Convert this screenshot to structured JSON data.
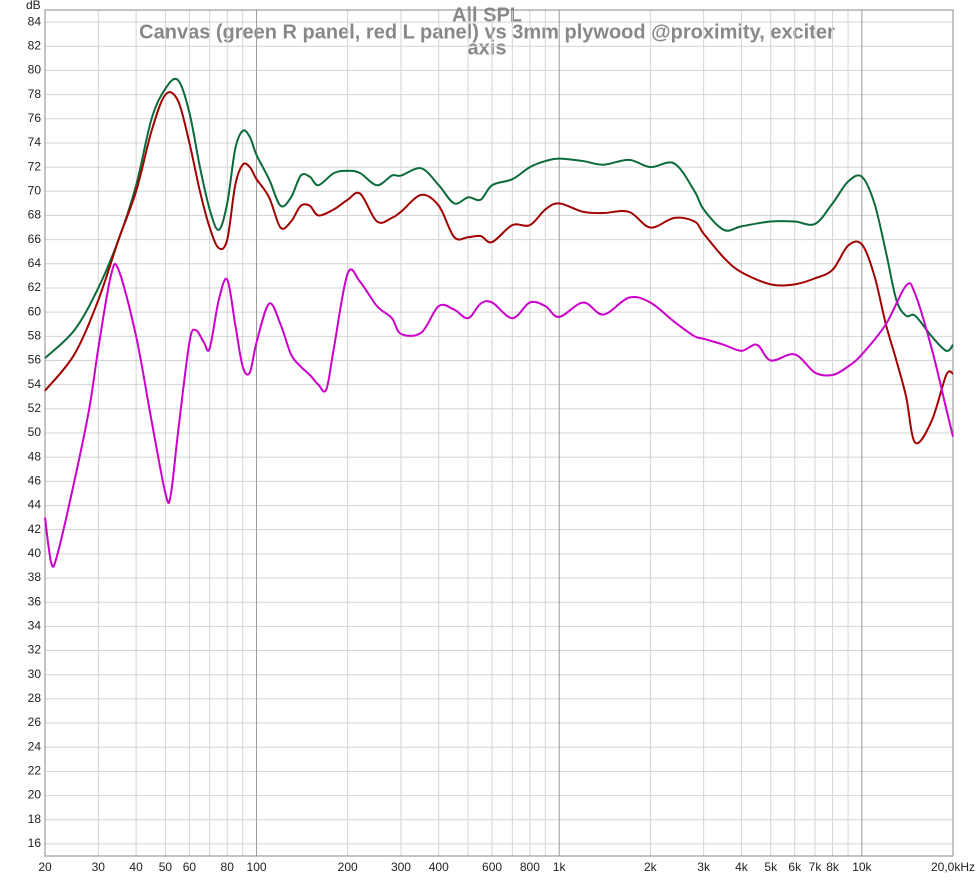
{
  "chart_data": {
    "type": "line",
    "title": "All SPL",
    "subtitle": [
      "Canvas (green R panel, red L panel) vs 3mm plywood @proximity, exciter",
      "axis"
    ],
    "ylabel": "dB",
    "xscale": "log",
    "grid": true,
    "xlim": [
      20,
      20000
    ],
    "ylim": [
      15,
      85
    ],
    "xticks": [
      20,
      30,
      40,
      50,
      60,
      80,
      100,
      200,
      300,
      400,
      600,
      800,
      {
        "value": 1000,
        "label": "1k"
      },
      {
        "value": 2000,
        "label": "2k"
      },
      {
        "value": 3000,
        "label": "3k"
      },
      {
        "value": 4000,
        "label": "4k"
      },
      {
        "value": 5000,
        "label": "5k"
      },
      {
        "value": 6000,
        "label": "6k"
      },
      {
        "value": 7000,
        "label": "7k"
      },
      {
        "value": 8000,
        "label": "8k"
      },
      {
        "value": 10000,
        "label": "10k"
      },
      {
        "value": 20000,
        "label": "20,0kHz"
      }
    ],
    "xminorticks": [
      70,
      90,
      500,
      700,
      900,
      9000
    ],
    "yticks": [
      16,
      18,
      20,
      22,
      24,
      26,
      28,
      30,
      32,
      34,
      36,
      38,
      40,
      42,
      44,
      46,
      48,
      50,
      52,
      54,
      56,
      58,
      60,
      62,
      64,
      66,
      68,
      70,
      72,
      74,
      76,
      78,
      80,
      82,
      84
    ],
    "series": [
      {
        "color": "#0b6b3a",
        "x": [
          20,
          25,
          30,
          35,
          40,
          45,
          50,
          55,
          60,
          65,
          70,
          75,
          80,
          85,
          90,
          95,
          100,
          110,
          120,
          130,
          140,
          150,
          160,
          180,
          200,
          220,
          250,
          280,
          300,
          350,
          400,
          450,
          500,
          550,
          600,
          700,
          800,
          900,
          1000,
          1200,
          1400,
          1700,
          2000,
          2400,
          2800,
          3000,
          3500,
          4000,
          5000,
          6000,
          7000,
          8000,
          9000,
          10000,
          11000,
          12000,
          13000,
          14000,
          15000,
          17000,
          19000,
          20000
        ],
        "values": [
          56.2,
          58.5,
          62,
          66,
          70.5,
          76,
          78.5,
          79.2,
          76.5,
          72,
          68.5,
          66.8,
          69,
          73.5,
          75,
          74.5,
          73,
          71,
          68.8,
          69.5,
          71.3,
          71.2,
          70.5,
          71.5,
          71.7,
          71.5,
          70.5,
          71.3,
          71.3,
          71.9,
          70.5,
          69,
          69.5,
          69.3,
          70.5,
          71,
          72,
          72.5,
          72.7,
          72.5,
          72.2,
          72.6,
          72,
          72.3,
          70,
          68.5,
          66.8,
          67.1,
          67.5,
          67.5,
          67.3,
          69,
          70.8,
          71.2,
          69,
          65,
          61,
          59.7,
          59.7,
          58,
          56.8,
          57.3
        ]
      },
      {
        "color": "#a30000",
        "x": [
          20,
          25,
          30,
          35,
          40,
          45,
          50,
          55,
          60,
          65,
          70,
          75,
          80,
          85,
          90,
          95,
          100,
          110,
          120,
          130,
          140,
          150,
          160,
          180,
          200,
          220,
          250,
          280,
          300,
          350,
          400,
          450,
          500,
          550,
          600,
          700,
          800,
          900,
          1000,
          1200,
          1400,
          1700,
          2000,
          2400,
          2800,
          3000,
          3500,
          4000,
          5000,
          6000,
          7000,
          8000,
          9000,
          10000,
          11000,
          12000,
          13000,
          14000,
          15000,
          17000,
          19000,
          20000
        ],
        "values": [
          53.5,
          56.5,
          61,
          66,
          70,
          75,
          78,
          77.5,
          74,
          70,
          67,
          65.3,
          66,
          70.5,
          72.2,
          72,
          71,
          69.5,
          67,
          67.5,
          68.8,
          68.8,
          68,
          68.5,
          69.3,
          69.8,
          67.5,
          67.8,
          68.3,
          69.7,
          68.8,
          66.2,
          66.2,
          66.3,
          65.8,
          67.2,
          67.2,
          68.5,
          69,
          68.3,
          68.2,
          68.3,
          67,
          67.8,
          67.5,
          66.5,
          64.5,
          63.3,
          62.3,
          62.3,
          62.8,
          63.5,
          65.5,
          65.6,
          63,
          59,
          56,
          53,
          49.2,
          51,
          54.8,
          54.9
        ]
      },
      {
        "color": "#cc00cc",
        "x": [
          20,
          21,
          22,
          25,
          28,
          30,
          33,
          35,
          40,
          45,
          50,
          52,
          55,
          60,
          63,
          67,
          70,
          75,
          80,
          85,
          90,
          95,
          100,
          110,
          120,
          130,
          140,
          150,
          160,
          170,
          180,
          200,
          220,
          250,
          280,
          300,
          350,
          400,
          450,
          500,
          550,
          600,
          700,
          800,
          900,
          1000,
          1200,
          1400,
          1700,
          2000,
          2400,
          2800,
          3000,
          3500,
          4000,
          4500,
          5000,
          6000,
          7000,
          8000,
          9000,
          10000,
          12000,
          14000,
          15000,
          17000,
          19000,
          20000
        ],
        "values": [
          43,
          39.2,
          40,
          46,
          52,
          57,
          63,
          63.5,
          58,
          51,
          45,
          44.8,
          50,
          57.5,
          58.5,
          57.5,
          57,
          61,
          62.7,
          59,
          55.5,
          55,
          57.5,
          60.7,
          59,
          56.5,
          55.5,
          54.8,
          54,
          53.6,
          57,
          63.2,
          62.5,
          60.5,
          59.5,
          58.2,
          58.3,
          60.5,
          60.2,
          59.5,
          60.7,
          60.8,
          59.5,
          60.8,
          60.5,
          59.6,
          60.8,
          59.8,
          61.2,
          60.8,
          59.2,
          58,
          57.8,
          57.3,
          56.8,
          57.3,
          56,
          56.5,
          55,
          54.8,
          55.5,
          56.5,
          59,
          62.2,
          61.5,
          57,
          52,
          49.7
        ]
      }
    ]
  }
}
